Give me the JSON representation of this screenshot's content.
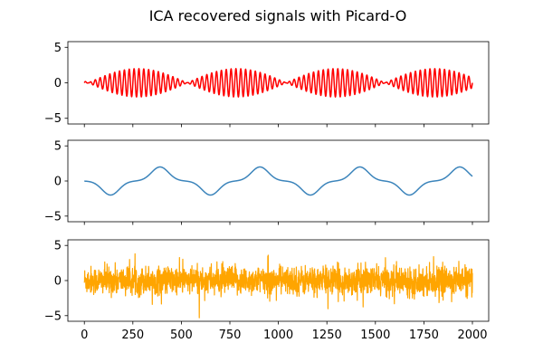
{
  "chart_data": {
    "type": "line",
    "title": "ICA recovered signals with Picard-O",
    "sharex": true,
    "xlim": [
      -84.95,
      2083.95
    ],
    "x_ticks": [
      0,
      250,
      500,
      750,
      1000,
      1250,
      1500,
      1750,
      2000
    ],
    "x_tick_labels": [
      "0",
      "250",
      "500",
      "750",
      "1000",
      "1250",
      "1500",
      "1750",
      "2000"
    ],
    "n_samples": 2000,
    "x_range": [
      0,
      2000
    ],
    "panels": [
      {
        "ylim": [
          -5.8,
          5.8
        ],
        "y_ticks": [
          -5,
          0,
          5
        ],
        "y_tick_labels": [
          "−5",
          "0",
          "5"
        ],
        "series": [
          {
            "color": "#ff0000",
            "signal_type": "amplitude-modulated sinusoid",
            "amplitude_max": 2.0,
            "envelope_period_samples": 510,
            "carrier_period_samples": 25
          }
        ]
      },
      {
        "ylim": [
          -5.8,
          5.8
        ],
        "y_ticks": [
          -5,
          0,
          5
        ],
        "y_tick_labels": [
          "−5",
          "0",
          "5"
        ],
        "series": [
          {
            "color": "#3b84bb",
            "signal_type": "smooth alternating pulses",
            "amplitude_max": 2.0,
            "pulse_peaks": [
              {
                "x": 135,
                "y": -2.0
              },
              {
                "x": 390,
                "y": 2.0
              },
              {
                "x": 650,
                "y": -2.0
              },
              {
                "x": 905,
                "y": 2.0
              },
              {
                "x": 1165,
                "y": -2.0
              },
              {
                "x": 1420,
                "y": 2.0
              },
              {
                "x": 1675,
                "y": -2.0
              },
              {
                "x": 1935,
                "y": 2.0
              }
            ]
          }
        ]
      },
      {
        "ylim": [
          -5.8,
          5.8
        ],
        "y_ticks": [
          -5,
          0,
          5
        ],
        "y_tick_labels": [
          "−5",
          "0",
          "5"
        ],
        "series": [
          {
            "color": "#ffa500",
            "signal_type": "noise",
            "std": 1.0,
            "min": -5.3,
            "max": 4.9
          }
        ]
      }
    ]
  }
}
